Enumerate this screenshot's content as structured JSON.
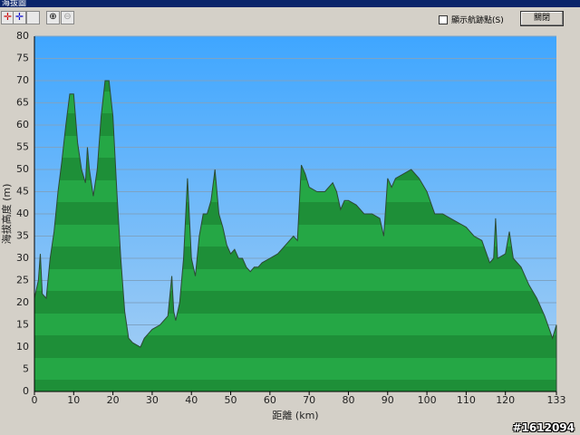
{
  "window": {
    "title": "海拔圖",
    "checkbox_label": "顯示航跡點(S)",
    "close_button": "關閉",
    "watermark": "#1612094"
  },
  "chart_data": {
    "type": "area",
    "x_label": "距離 (km)",
    "y_label": "海拔高度 (m)",
    "x": [
      0,
      1,
      1.5,
      2,
      3,
      4,
      5,
      6,
      7,
      8,
      9,
      10,
      11,
      12,
      13,
      13.5,
      14,
      15,
      16,
      17,
      18,
      19,
      20,
      21,
      22,
      23,
      24,
      25,
      26,
      27,
      28,
      29,
      30,
      32,
      34,
      35,
      35.5,
      36,
      37,
      38,
      39,
      40,
      41,
      42,
      43,
      44,
      45,
      46,
      47,
      48,
      49,
      50,
      51,
      52,
      53,
      54,
      55,
      56,
      57,
      58,
      60,
      62,
      64,
      66,
      67,
      68,
      69,
      70,
      72,
      74,
      76,
      77,
      78,
      79,
      80,
      82,
      84,
      86,
      88,
      89,
      90,
      91,
      92,
      94,
      96,
      98,
      100,
      102,
      104,
      106,
      108,
      110,
      112,
      114,
      116,
      117,
      117.5,
      118,
      120,
      121,
      122,
      124,
      126,
      128,
      130,
      132,
      133
    ],
    "values": [
      21,
      25,
      31,
      22,
      21,
      30,
      36,
      45,
      52,
      60,
      67,
      67,
      56,
      50,
      47,
      55,
      50,
      44,
      50,
      62,
      70,
      70,
      62,
      45,
      30,
      18,
      12,
      11,
      10.5,
      10,
      12,
      13,
      14,
      15,
      17,
      26,
      18,
      16,
      20,
      30,
      48,
      30,
      26,
      35,
      40,
      40,
      43,
      50,
      40,
      37,
      33,
      31,
      32,
      30,
      30,
      28,
      27,
      28,
      28,
      29,
      30,
      31,
      33,
      35,
      34,
      51,
      49,
      46,
      45,
      45,
      47,
      45,
      41,
      43,
      43,
      42,
      40,
      40,
      39,
      35,
      48,
      46,
      48,
      49,
      50,
      48,
      45,
      40,
      40,
      39,
      38,
      37,
      35,
      34,
      29,
      30,
      39,
      30,
      31,
      36,
      30,
      28,
      24,
      21,
      17,
      12,
      15
    ],
    "color": "#1f9e3f",
    "xlim": [
      0,
      133
    ],
    "ylim": [
      0,
      80
    ],
    "xticks": [
      0,
      10,
      20,
      30,
      40,
      50,
      60,
      70,
      80,
      90,
      100,
      110,
      120,
      133
    ],
    "yticks": [
      0,
      5,
      10,
      15,
      20,
      25,
      30,
      35,
      40,
      45,
      50,
      55,
      60,
      65,
      70,
      75,
      80
    ],
    "grid": true
  }
}
